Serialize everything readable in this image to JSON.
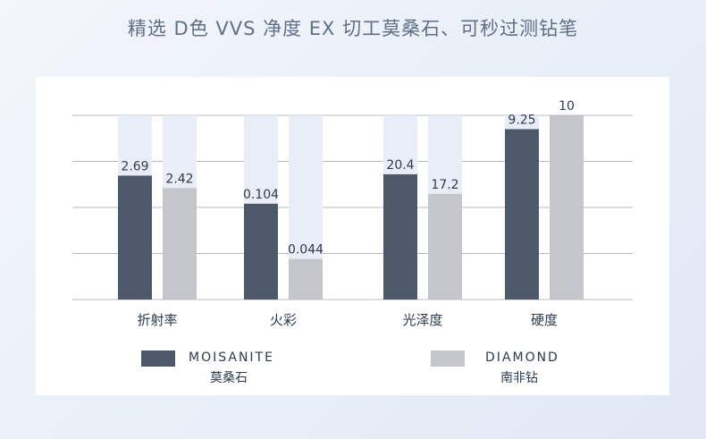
{
  "headline": "精选 D色 VVS 净度 EX 切工莫桑石、可秒过测钻笔",
  "colors": {
    "moissanite": "#4d586b",
    "diamond": "#c4c6cc",
    "track": "#e8edf7",
    "grid": "#b5b8bd"
  },
  "legend": {
    "moissanite": {
      "en": "MOISANITE",
      "cn": "莫桑石"
    },
    "diamond": {
      "en": "DIAMOND",
      "cn": "南非钻"
    }
  },
  "chart_data": {
    "type": "bar",
    "title": "",
    "xlabel": "",
    "ylabel": "",
    "grid": true,
    "legend_position": "bottom",
    "categories": [
      "折射率",
      "火彩",
      "光泽度",
      "硬度"
    ],
    "groups": [
      {
        "category": "折射率",
        "max": 4,
        "values": [
          {
            "series": "moissanite",
            "value": 2.69,
            "label": "2.69"
          },
          {
            "series": "diamond",
            "value": 2.42,
            "label": "2.42"
          }
        ]
      },
      {
        "category": "火彩",
        "max": 0.2,
        "values": [
          {
            "series": "moissanite",
            "value": 0.104,
            "label": "0.104"
          },
          {
            "series": "diamond",
            "value": 0.044,
            "label": "0.044"
          }
        ]
      },
      {
        "category": "光泽度",
        "max": 30,
        "values": [
          {
            "series": "moissanite",
            "value": 20.4,
            "label": "20.4"
          },
          {
            "series": "diamond",
            "value": 17.2,
            "label": "17.2"
          }
        ]
      },
      {
        "category": "硬度",
        "max": 10,
        "values": [
          {
            "series": "moissanite",
            "value": 9.25,
            "label": "9.25"
          },
          {
            "series": "diamond",
            "value": 10,
            "label": "10"
          }
        ]
      }
    ]
  }
}
